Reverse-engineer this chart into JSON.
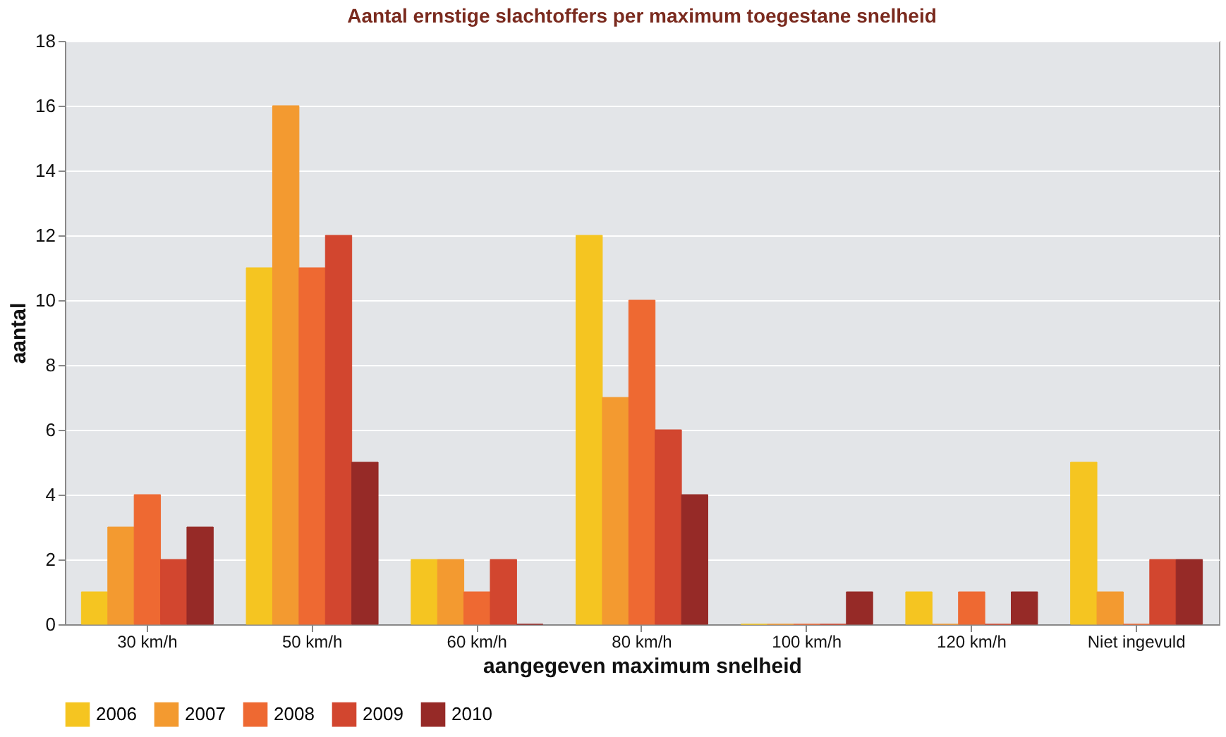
{
  "chart_data": {
    "type": "bar",
    "title": "Aantal ernstige slachtoffers per maximum toegestane snelheid",
    "xlabel": "aangegeven maximum snelheid",
    "ylabel": "aantal",
    "categories": [
      "30 km/h",
      "50 km/h",
      "60 km/h",
      "80 km/h",
      "100 km/h",
      "120 km/h",
      "Niet ingevuld"
    ],
    "series": [
      {
        "name": "2006",
        "color": "#f5c521",
        "values": [
          1,
          11,
          2,
          12,
          0,
          1,
          5
        ]
      },
      {
        "name": "2007",
        "color": "#f39a30",
        "values": [
          3,
          16,
          2,
          7,
          0,
          0,
          1
        ]
      },
      {
        "name": "2008",
        "color": "#ee6932",
        "values": [
          4,
          11,
          1,
          10,
          0,
          1,
          0
        ]
      },
      {
        "name": "2009",
        "color": "#d2462f",
        "values": [
          2,
          12,
          2,
          6,
          0,
          0,
          2
        ]
      },
      {
        "name": "2010",
        "color": "#962a27",
        "values": [
          3,
          5,
          0,
          4,
          1,
          1,
          2
        ]
      }
    ],
    "ylim": [
      0,
      18
    ],
    "yticks": [
      0,
      2,
      4,
      6,
      8,
      10,
      12,
      14,
      16,
      18
    ],
    "grid": "y",
    "legend": "bottom"
  }
}
